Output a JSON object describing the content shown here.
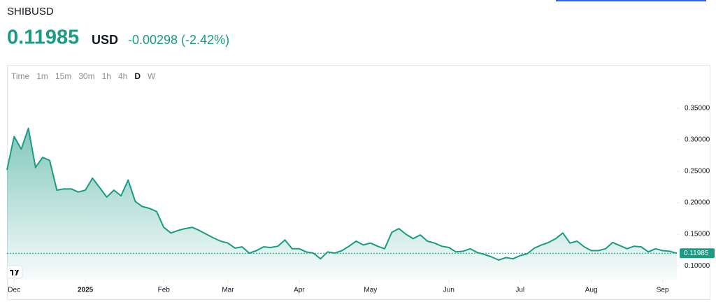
{
  "header": {
    "symbol": "SHIBUSD",
    "price": "0.11985",
    "currency": "USD",
    "change": "-0.00298 (-2.42%)"
  },
  "toolbar": {
    "intervals": [
      "Time",
      "1m",
      "15m",
      "30m",
      "1h",
      "4h",
      "D",
      "W"
    ],
    "active_interval": 6
  },
  "chart_data": {
    "type": "area",
    "color": "#1a9b84",
    "values": [
      0.252,
      0.305,
      0.285,
      0.318,
      0.256,
      0.272,
      0.267,
      0.22,
      0.222,
      0.222,
      0.217,
      0.22,
      0.239,
      0.224,
      0.209,
      0.22,
      0.211,
      0.236,
      0.202,
      0.194,
      0.191,
      0.186,
      0.161,
      0.152,
      0.156,
      0.159,
      0.161,
      0.156,
      0.15,
      0.144,
      0.139,
      0.136,
      0.128,
      0.13,
      0.12,
      0.124,
      0.13,
      0.129,
      0.131,
      0.141,
      0.127,
      0.127,
      0.122,
      0.12,
      0.111,
      0.122,
      0.12,
      0.124,
      0.131,
      0.139,
      0.133,
      0.136,
      0.131,
      0.127,
      0.153,
      0.159,
      0.15,
      0.143,
      0.149,
      0.139,
      0.136,
      0.131,
      0.129,
      0.122,
      0.123,
      0.127,
      0.121,
      0.118,
      0.114,
      0.109,
      0.113,
      0.111,
      0.116,
      0.119,
      0.128,
      0.133,
      0.137,
      0.143,
      0.152,
      0.136,
      0.139,
      0.13,
      0.124,
      0.124,
      0.127,
      0.137,
      0.132,
      0.127,
      0.131,
      0.13,
      0.122,
      0.127,
      0.124,
      0.123,
      0.11985
    ],
    "xlim": [
      0,
      94
    ],
    "xticks": [
      {
        "value": 1,
        "label": "Dec"
      },
      {
        "value": 11,
        "label": "2025"
      },
      {
        "value": 22,
        "label": "Feb"
      },
      {
        "value": 31,
        "label": "Mar"
      },
      {
        "value": 41,
        "label": "Apr"
      },
      {
        "value": 51,
        "label": "May"
      },
      {
        "value": 62,
        "label": "Jun"
      },
      {
        "value": 72,
        "label": "Jul"
      },
      {
        "value": 82,
        "label": "Aug"
      },
      {
        "value": 92,
        "label": "Sep"
      }
    ],
    "ylim": [
      0.078,
      0.383
    ],
    "yticks": [
      {
        "value": 0.1,
        "label": "0.10000"
      },
      {
        "value": 0.15,
        "label": "0.15000"
      },
      {
        "value": 0.2,
        "label": "0.20000"
      },
      {
        "value": 0.25,
        "label": "0.25000"
      },
      {
        "value": 0.3,
        "label": "0.30000"
      },
      {
        "value": 0.35,
        "label": "0.35000"
      }
    ]
  }
}
